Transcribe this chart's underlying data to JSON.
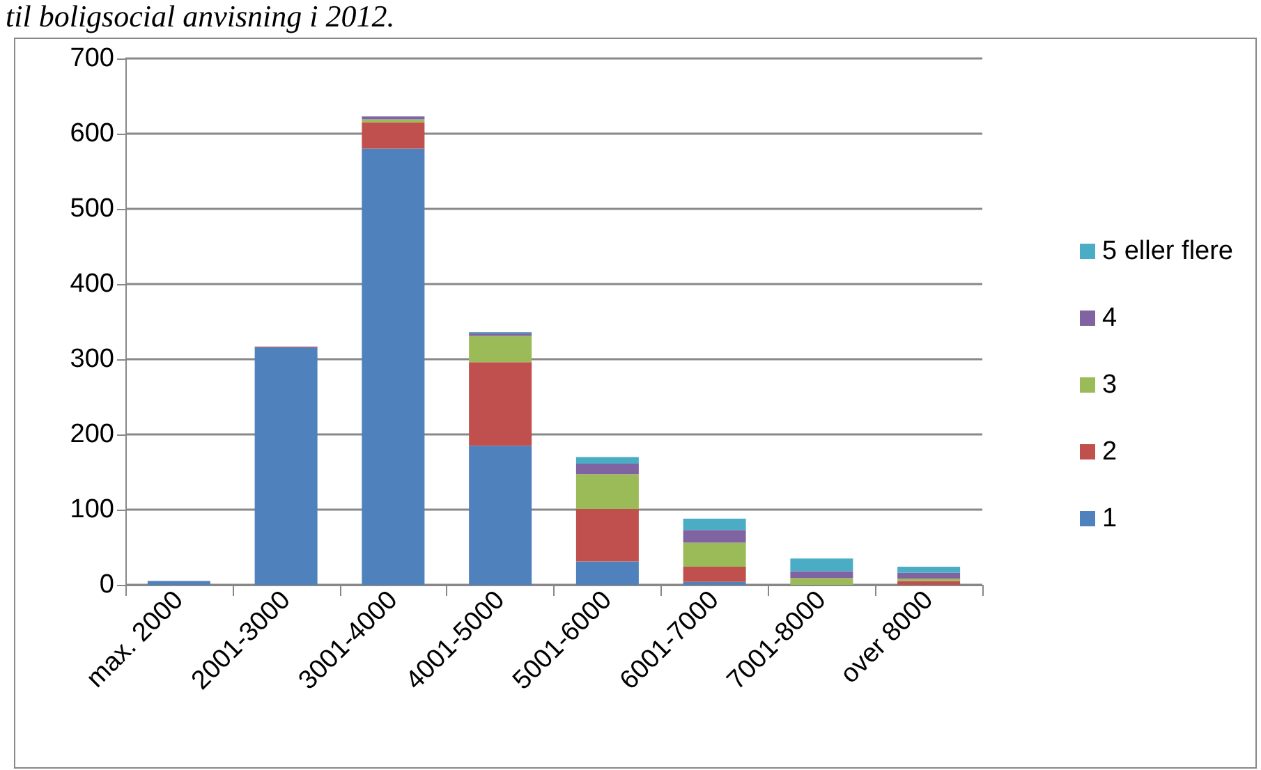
{
  "chart_data": {
    "type": "bar",
    "title": "til boligsocial anvisning i 2012.",
    "stacked": true,
    "categories": [
      "max. 2000",
      "2001-3000",
      "3001-4000",
      "4001-5000",
      "5001-6000",
      "6001-7000",
      "7001-8000",
      "over 8000"
    ],
    "series": [
      {
        "name": "1",
        "color": "#4f81bd",
        "values": [
          5,
          316,
          580,
          185,
          31,
          4,
          0,
          null
        ]
      },
      {
        "name": "2",
        "color": "#c0504d",
        "values": [
          0,
          1,
          35,
          111,
          70,
          20,
          null,
          5
        ]
      },
      {
        "name": "3",
        "color": "#9bbb59",
        "values": [
          0,
          0,
          4,
          35,
          46,
          32,
          9,
          3
        ]
      },
      {
        "name": "4",
        "color": "#8064a2",
        "values": [
          0,
          0,
          4,
          4,
          14,
          17,
          9,
          8
        ]
      },
      {
        "name": "5 eller flere",
        "color": "#4bacc6",
        "values": [
          0,
          0,
          0,
          1,
          9,
          15,
          17,
          8
        ]
      }
    ],
    "ylim": [
      0,
      700
    ],
    "yticks": [
      0,
      100,
      200,
      300,
      400,
      500,
      600,
      700
    ],
    "grid": "y",
    "legend": "right"
  }
}
